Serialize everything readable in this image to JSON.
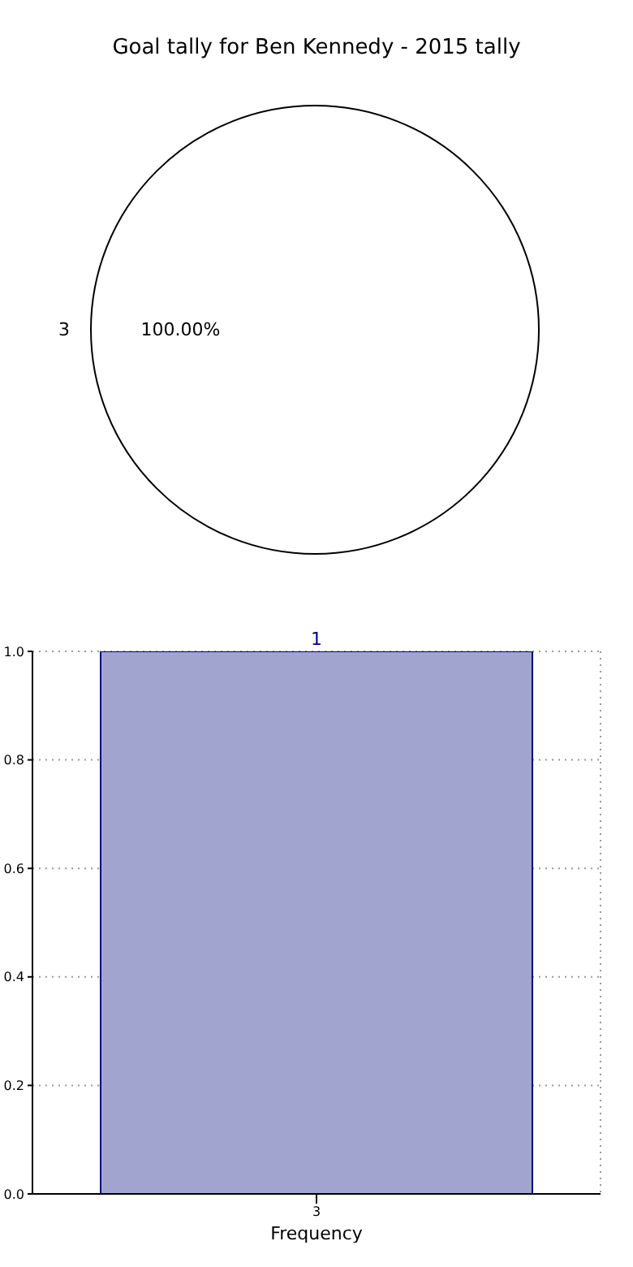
{
  "chart_data": [
    {
      "type": "pie",
      "title": "Goal tally for Ben Kennedy - 2015 tally",
      "categories": [
        "3"
      ],
      "values": [
        100
      ],
      "colors": [
        "#ffffff"
      ],
      "value_labels": [
        "100.00%"
      ]
    },
    {
      "type": "bar",
      "xlabel": "Frequency",
      "categories": [
        "3"
      ],
      "values": [
        1
      ],
      "color": "#a2a4d0",
      "ylim": [
        0,
        1
      ],
      "yticks": [
        {
          "value": 0,
          "label": "0.0"
        },
        {
          "value": 0.2,
          "label": "0.2"
        },
        {
          "value": 0.4,
          "label": "0.4"
        },
        {
          "value": 0.6,
          "label": "0.6"
        },
        {
          "value": 0.8,
          "label": "0.8"
        },
        {
          "value": 1,
          "label": "1.0"
        }
      ],
      "grid": true,
      "data_labels": true
    }
  ]
}
